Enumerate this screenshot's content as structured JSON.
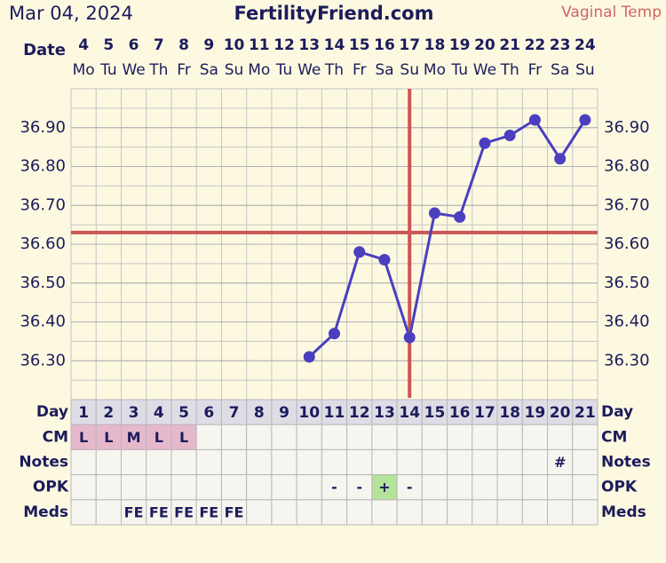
{
  "header": {
    "date": "Mar 04, 2024",
    "site": "FertilityFriend.com",
    "temp_type": "Vaginal Temp"
  },
  "date_row": {
    "label": "Date",
    "dates": [
      "4",
      "5",
      "6",
      "7",
      "8",
      "9",
      "10",
      "11",
      "12",
      "13",
      "14",
      "15",
      "16",
      "17",
      "18",
      "19",
      "20",
      "21",
      "22",
      "23",
      "24"
    ],
    "weekdays": [
      "Mo",
      "Tu",
      "We",
      "Th",
      "Fr",
      "Sa",
      "Su",
      "Mo",
      "Tu",
      "We",
      "Th",
      "Fr",
      "Sa",
      "Su",
      "Mo",
      "Tu",
      "We",
      "Th",
      "Fr",
      "Sa",
      "Su"
    ]
  },
  "chart_data": {
    "type": "line",
    "x_label": "Day",
    "categories": [
      "1",
      "2",
      "3",
      "4",
      "5",
      "6",
      "7",
      "8",
      "9",
      "10",
      "11",
      "12",
      "13",
      "14",
      "15",
      "16",
      "17",
      "18",
      "19",
      "20",
      "21"
    ],
    "values": [
      null,
      null,
      null,
      null,
      null,
      null,
      null,
      null,
      null,
      36.31,
      36.37,
      36.58,
      36.56,
      36.36,
      36.68,
      36.67,
      36.86,
      36.88,
      36.92,
      36.82,
      36.92
    ],
    "color": "#4b3fbf",
    "ylim": [
      36.2,
      37.0
    ],
    "yticks": [
      {
        "value": 36.3,
        "label": "36.30"
      },
      {
        "value": 36.4,
        "label": "36.40"
      },
      {
        "value": 36.5,
        "label": "36.50"
      },
      {
        "value": 36.6,
        "label": "36.60"
      },
      {
        "value": 36.7,
        "label": "36.70"
      },
      {
        "value": 36.8,
        "label": "36.80"
      },
      {
        "value": 36.9,
        "label": "36.90"
      }
    ],
    "grid_step": 0.05,
    "coverline": 36.63,
    "coverline_color": "#cc5555",
    "ovulation_index": 13
  },
  "table": {
    "rows": [
      {
        "label": "CM",
        "cells": [
          "L",
          "L",
          "M",
          "L",
          "L",
          null,
          null,
          null,
          null,
          null,
          null,
          null,
          null,
          null,
          null,
          null,
          null,
          null,
          null,
          null,
          null
        ],
        "fill": "#e6b8cc",
        "fill_text": null
      },
      {
        "label": "Notes",
        "cells": [
          null,
          null,
          null,
          null,
          null,
          null,
          null,
          null,
          null,
          null,
          null,
          null,
          null,
          null,
          null,
          null,
          null,
          null,
          null,
          "#",
          null
        ],
        "fill": null,
        "fill_text": null
      },
      {
        "label": "OPK",
        "cells": [
          null,
          null,
          null,
          null,
          null,
          null,
          null,
          null,
          null,
          null,
          "-",
          "-",
          "+",
          "-",
          null,
          null,
          null,
          null,
          null,
          null,
          null
        ],
        "fill": "#b4e39a",
        "fill_text": "+"
      },
      {
        "label": "Meds",
        "cells": [
          null,
          null,
          "FE",
          "FE",
          "FE",
          "FE",
          "FE",
          null,
          null,
          null,
          null,
          null,
          null,
          null,
          null,
          null,
          null,
          null,
          null,
          null,
          null
        ],
        "fill": null,
        "fill_text": null
      }
    ]
  }
}
